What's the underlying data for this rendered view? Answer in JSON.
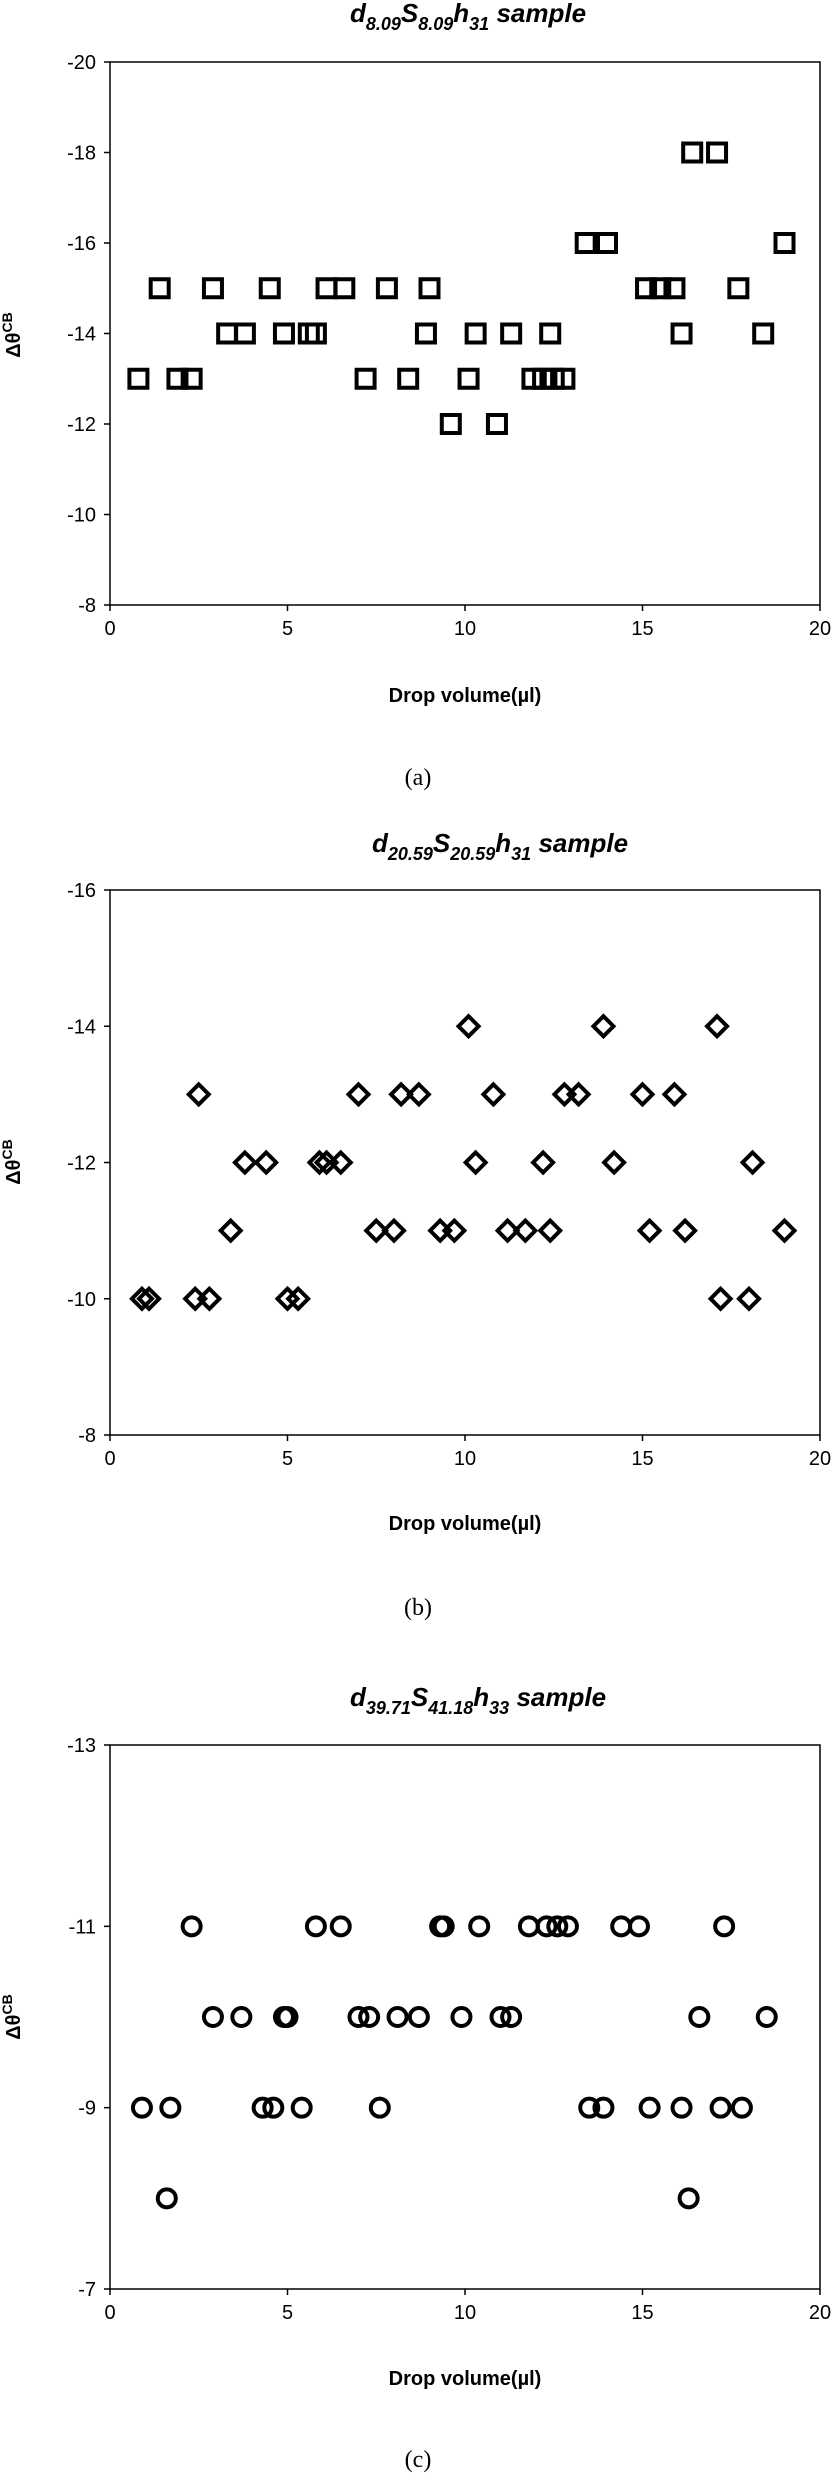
{
  "chart_data": [
    {
      "type": "scatter",
      "title": {
        "d_sub": "8.09",
        "s_sub": "8.09",
        "h_sub": "31",
        "suffix": "sample"
      },
      "xlabel": "Drop volume(µl)",
      "ylabel": "Δθ",
      "ylabel_sup": "CB",
      "xlim": [
        0,
        20
      ],
      "xticks": [
        0,
        5,
        10,
        15,
        20
      ],
      "ylim": [
        -20,
        -8
      ],
      "yticks": [
        -20,
        -18,
        -16,
        -14,
        -12,
        -10,
        -8
      ],
      "y_axis_inverted": true,
      "marker": "square",
      "grid": false,
      "caption": "(a)",
      "x": [
        0.8,
        1.4,
        1.9,
        2.3,
        2.9,
        3.3,
        3.8,
        4.5,
        4.9,
        5.6,
        5.8,
        6.1,
        6.6,
        7.2,
        7.8,
        8.4,
        8.9,
        9.0,
        9.6,
        10.1,
        10.3,
        10.9,
        11.3,
        11.9,
        12.2,
        12.4,
        12.5,
        12.8,
        13.4,
        14.0,
        15.1,
        15.5,
        15.9,
        16.1,
        16.4,
        17.1,
        17.7,
        18.4,
        19.0
      ],
      "y": [
        -13,
        -15,
        -13,
        -13,
        -15,
        -14,
        -14,
        -15,
        -14,
        -14,
        -14,
        -15,
        -15,
        -13,
        -15,
        -13,
        -14,
        -15,
        -12,
        -13,
        -14,
        -12,
        -14,
        -13,
        -13,
        -14,
        -13,
        -13,
        -16,
        -16,
        -15,
        -15,
        -15,
        -14,
        -18,
        -18,
        -15,
        -14,
        -16
      ]
    },
    {
      "type": "scatter",
      "title": {
        "d_sub": "20.59",
        "s_sub": "20.59",
        "h_sub": "31",
        "suffix": "sample"
      },
      "xlabel": "Drop volume(µl)",
      "ylabel": "Δθ",
      "ylabel_sup": "CB",
      "xlim": [
        0,
        20
      ],
      "xticks": [
        0,
        5,
        10,
        15,
        20
      ],
      "ylim": [
        -16,
        -8
      ],
      "yticks": [
        -16,
        -14,
        -12,
        -10,
        -8
      ],
      "y_axis_inverted": true,
      "marker": "diamond",
      "grid": false,
      "caption": "(b)",
      "x": [
        0.9,
        1.1,
        2.4,
        2.5,
        2.8,
        3.4,
        3.8,
        4.4,
        5.0,
        5.3,
        5.9,
        6.1,
        6.5,
        7.0,
        7.5,
        8.0,
        8.2,
        8.7,
        9.3,
        9.7,
        10.1,
        10.3,
        10.8,
        11.2,
        11.7,
        12.2,
        12.4,
        12.8,
        13.2,
        13.9,
        14.2,
        15.0,
        15.2,
        15.9,
        16.2,
        17.1,
        17.2,
        18.0,
        18.1,
        19.0
      ],
      "y": [
        -10,
        -10,
        -10,
        -13,
        -10,
        -11,
        -12,
        -12,
        -10,
        -10,
        -12,
        -12,
        -12,
        -13,
        -11,
        -11,
        -13,
        -13,
        -11,
        -11,
        -14,
        -12,
        -13,
        -11,
        -11,
        -12,
        -11,
        -13,
        -13,
        -14,
        -12,
        -13,
        -11,
        -13,
        -11,
        -14,
        -10,
        -10,
        -12,
        -11
      ]
    },
    {
      "type": "scatter",
      "title": {
        "d_sub": "39.71",
        "s_sub": "41.18",
        "h_sub": "33",
        "suffix": "sample"
      },
      "xlabel": "Drop volume(µl)",
      "ylabel": "Δθ",
      "ylabel_sup": "CB",
      "xlim": [
        0,
        20
      ],
      "xticks": [
        0,
        5,
        10,
        15,
        20
      ],
      "ylim": [
        -13,
        -7
      ],
      "yticks": [
        -13,
        -11,
        -9,
        -7
      ],
      "y_axis_inverted": true,
      "marker": "circle",
      "grid": false,
      "caption": "(c)",
      "x": [
        0.9,
        1.6,
        1.7,
        2.3,
        2.9,
        3.7,
        4.3,
        4.6,
        4.9,
        5.0,
        5.4,
        5.8,
        6.5,
        7.0,
        7.3,
        7.6,
        8.1,
        8.7,
        9.3,
        9.4,
        9.9,
        10.4,
        11.0,
        11.3,
        11.8,
        12.3,
        12.6,
        12.9,
        13.5,
        13.9,
        14.4,
        14.9,
        15.2,
        16.1,
        16.3,
        16.6,
        17.2,
        17.3,
        17.8,
        18.5
      ],
      "y": [
        -9,
        -8,
        -9,
        -11,
        -10,
        -10,
        -9,
        -9,
        -10,
        -10,
        -9,
        -11,
        -11,
        -10,
        -10,
        -9,
        -10,
        -10,
        -11,
        -11,
        -10,
        -11,
        -10,
        -10,
        -11,
        -11,
        -11,
        -11,
        -9,
        -9,
        -11,
        -11,
        -9,
        -9,
        -8,
        -10,
        -9,
        -11,
        -9,
        -10
      ]
    }
  ]
}
